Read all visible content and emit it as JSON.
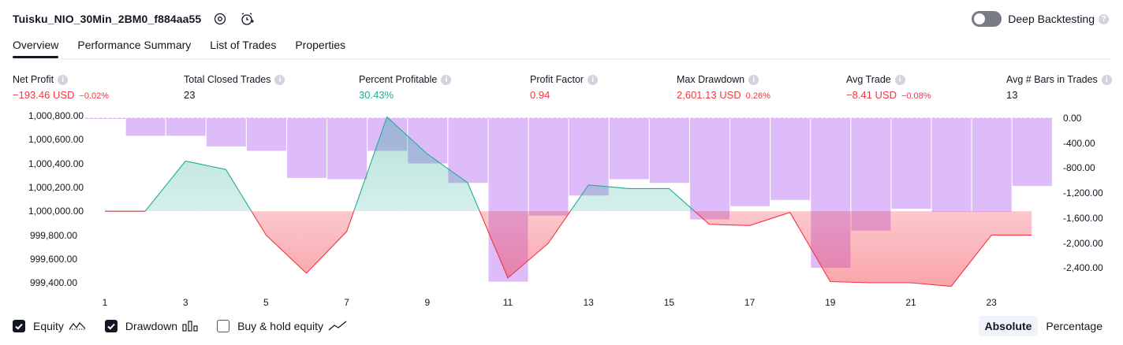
{
  "header": {
    "title": "Tuisku_NIO_30Min_2BM0_f884aa55",
    "icons": [
      "settings-icon",
      "add-alert-icon"
    ],
    "deep_backtesting_label": "Deep Backtesting",
    "deep_backtesting_on": false
  },
  "tabs": [
    {
      "label": "Overview",
      "active": true
    },
    {
      "label": "Performance Summary",
      "active": false
    },
    {
      "label": "List of Trades",
      "active": false
    },
    {
      "label": "Properties",
      "active": false
    }
  ],
  "metrics": [
    {
      "label": "Net Profit",
      "value": "−193.46 USD",
      "pct": "−0.02%",
      "tone": "neg"
    },
    {
      "label": "Total Closed Trades",
      "value": "23",
      "pct": "",
      "tone": "neutral"
    },
    {
      "label": "Percent Profitable",
      "value": "30.43%",
      "pct": "",
      "tone": "pos"
    },
    {
      "label": "Profit Factor",
      "value": "0.94",
      "pct": "",
      "tone": "neg"
    },
    {
      "label": "Max Drawdown",
      "value": "2,601.13 USD",
      "pct": "0.26%",
      "tone": "neg"
    },
    {
      "label": "Avg Trade",
      "value": "−8.41 USD",
      "pct": "−0.08%",
      "tone": "neg"
    },
    {
      "label": "Avg # Bars in Trades",
      "value": "13",
      "pct": "",
      "tone": "neutral"
    }
  ],
  "colors": {
    "equity_up": "#22ab94",
    "equity_down": "#f23645",
    "drawdown": "#d1a6f7",
    "baseline": "#787b86"
  },
  "chart_data": {
    "type": "line",
    "x": [
      1,
      2,
      3,
      4,
      5,
      6,
      7,
      8,
      9,
      10,
      11,
      12,
      13,
      14,
      15,
      16,
      17,
      18,
      19,
      20,
      21,
      22,
      23,
      24
    ],
    "x_tick_labels": [
      "1",
      "3",
      "5",
      "7",
      "9",
      "11",
      "13",
      "15",
      "17",
      "19",
      "21",
      "23"
    ],
    "left_tick_labels": [
      "1,000,800.00",
      "1,000,600.00",
      "1,000,400.00",
      "1,000,200.00",
      "1,000,000.00",
      "999,800.00",
      "999,600.00",
      "999,400.00"
    ],
    "right_tick_labels": [
      "0.00",
      "-400.00",
      "-800.00",
      "-1,200.00",
      "-1,600.00",
      "-2,000.00",
      "-2,400.00"
    ],
    "left_ylim": [
      999330,
      1000870
    ],
    "right_ylim": [
      -2630,
      170
    ],
    "baseline": 1000000,
    "series": [
      {
        "name": "Equity",
        "axis": "left",
        "values": [
          1000000,
          1000000,
          1000420,
          1000350,
          999800,
          999480,
          999830,
          1000790,
          1000480,
          1000240,
          999440,
          999730,
          1000220,
          1000190,
          1000190,
          999890,
          999880,
          999990,
          999410,
          999400,
          999400,
          999370,
          999800,
          999800
        ]
      },
      {
        "name": "Drawdown",
        "axis": "right",
        "type": "bar",
        "values": [
          -10,
          -280,
          -280,
          -450,
          -520,
          -950,
          -970,
          -520,
          -720,
          -1030,
          -2600,
          -1550,
          -1230,
          -970,
          -1030,
          -1610,
          -1400,
          -1300,
          -2380,
          -1790,
          -1440,
          -1490,
          -1490,
          -1080
        ]
      }
    ],
    "grid": false,
    "legend_placement": "bottom-left"
  },
  "legend": [
    {
      "label": "Equity",
      "checked": true,
      "glyph": "equity-glyph-icon"
    },
    {
      "label": "Drawdown",
      "checked": true,
      "glyph": "drawdown-glyph-icon"
    },
    {
      "label": "Buy & hold equity",
      "checked": false,
      "glyph": "buy-hold-glyph-icon"
    }
  ],
  "scale_toggle": [
    {
      "label": "Absolute",
      "active": true
    },
    {
      "label": "Percentage",
      "active": false
    }
  ]
}
